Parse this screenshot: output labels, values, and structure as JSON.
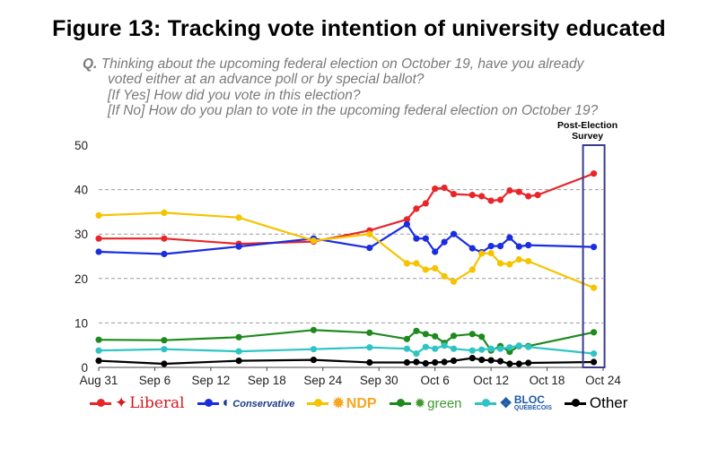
{
  "title": "Figure 13: Tracking vote intention of university educated",
  "question": {
    "prefix": "Q.",
    "line1": "Thinking about the upcoming federal election on October 19, have you already",
    "line2": "voted either at an advance poll or by special ballot?",
    "line3_tag": "[If Yes]",
    "line3_text": "How did you vote in this election?",
    "line4_tag": "[If No]",
    "line4_text": "How do you plan to vote in the upcoming federal election on October 19?"
  },
  "annotation": {
    "line1": "Post-Election",
    "line2": "Survey",
    "box_color": "#3b3b8f"
  },
  "chart_data": {
    "type": "line",
    "x_axis": {
      "type": "date",
      "min": "2015-08-31",
      "max": "2015-10-24",
      "ticks": [
        "2015-08-31",
        "2015-09-06",
        "2015-09-12",
        "2015-09-18",
        "2015-09-24",
        "2015-09-30",
        "2015-10-06",
        "2015-10-12",
        "2015-10-18",
        "2015-10-24"
      ],
      "tick_labels": [
        "Aug 31",
        "Sep 6",
        "Sep 12",
        "Sep 18",
        "Sep 24",
        "Sep 30",
        "Oct 6",
        "Oct 12",
        "Oct 18",
        "Oct 24"
      ]
    },
    "y_axis": {
      "min": 0,
      "max": 50,
      "ticks": [
        0,
        10,
        20,
        30,
        40,
        50
      ],
      "gridlines": [
        10,
        20,
        30,
        40
      ],
      "grid_style": "dashed"
    },
    "dates": [
      "2015-08-31",
      "2015-09-07",
      "2015-09-15",
      "2015-09-23",
      "2015-09-29",
      "2015-10-03",
      "2015-10-04",
      "2015-10-05",
      "2015-10-06",
      "2015-10-07",
      "2015-10-08",
      "2015-10-10",
      "2015-10-11",
      "2015-10-12",
      "2015-10-13",
      "2015-10-14",
      "2015-10-15",
      "2015-10-16",
      "2015-10-17",
      "2015-10-18",
      "2015-10-23"
    ],
    "series": [
      {
        "name": "Liberal",
        "label": "Liberal",
        "color": "#e8262a",
        "values": [
          29,
          29,
          27.8,
          28.3,
          30.8,
          33.3,
          35.7,
          36.9,
          40.2,
          40.4,
          39.0,
          38.8,
          38.5,
          37.5,
          37.7,
          39.8,
          39.5,
          38.5,
          38.8,
          null,
          43.6
        ]
      },
      {
        "name": "Conservative",
        "label": "Conservative",
        "color": "#1a2de0",
        "values": [
          26,
          25.5,
          27.2,
          29.0,
          26.9,
          32.2,
          29.0,
          29.0,
          26.0,
          28.2,
          30.0,
          26.8,
          25.9,
          27.3,
          27.3,
          29.2,
          27.2,
          27.5,
          null,
          null,
          27.1
        ]
      },
      {
        "name": "NDP",
        "label": "NDP",
        "color": "#f5c400",
        "values": [
          34.2,
          34.8,
          33.7,
          28.5,
          30.0,
          23.4,
          23.4,
          22.0,
          22.3,
          20.5,
          19.3,
          22.0,
          25.6,
          25.7,
          23.4,
          23.2,
          24.3,
          23.9,
          null,
          null,
          17.9
        ]
      },
      {
        "name": "green",
        "label": "green",
        "color": "#1d8a1d",
        "values": [
          6.2,
          6.1,
          6.8,
          8.4,
          7.8,
          6.4,
          8.2,
          7.5,
          7.0,
          5.5,
          7.1,
          7.5,
          6.9,
          3.8,
          4.8,
          3.5,
          4.8,
          4.8,
          null,
          null,
          7.9
        ]
      },
      {
        "name": "BLOC",
        "label": "BLOC",
        "color": "#2ec4c4",
        "values": [
          3.8,
          4.1,
          3.6,
          4.1,
          4.5,
          4.2,
          3.1,
          4.6,
          4.2,
          4.9,
          4.2,
          3.8,
          4.0,
          4.2,
          4.2,
          4.5,
          4.9,
          4.6,
          null,
          null,
          3.1
        ]
      },
      {
        "name": "Other",
        "label": "Other",
        "color": "#000000",
        "values": [
          1.5,
          0.8,
          1.5,
          1.7,
          1.1,
          1.1,
          1.2,
          0.9,
          1.1,
          1.2,
          1.5,
          2.1,
          1.7,
          1.6,
          1.4,
          0.8,
          0.8,
          1.0,
          null,
          null,
          1.2
        ]
      }
    ],
    "post_election_date": "2015-10-23",
    "legend": {
      "placement": "bottom"
    }
  },
  "legend_extras": {
    "bloc_line1": "BLOC",
    "bloc_line2": "QUÉBÉCOIS"
  }
}
